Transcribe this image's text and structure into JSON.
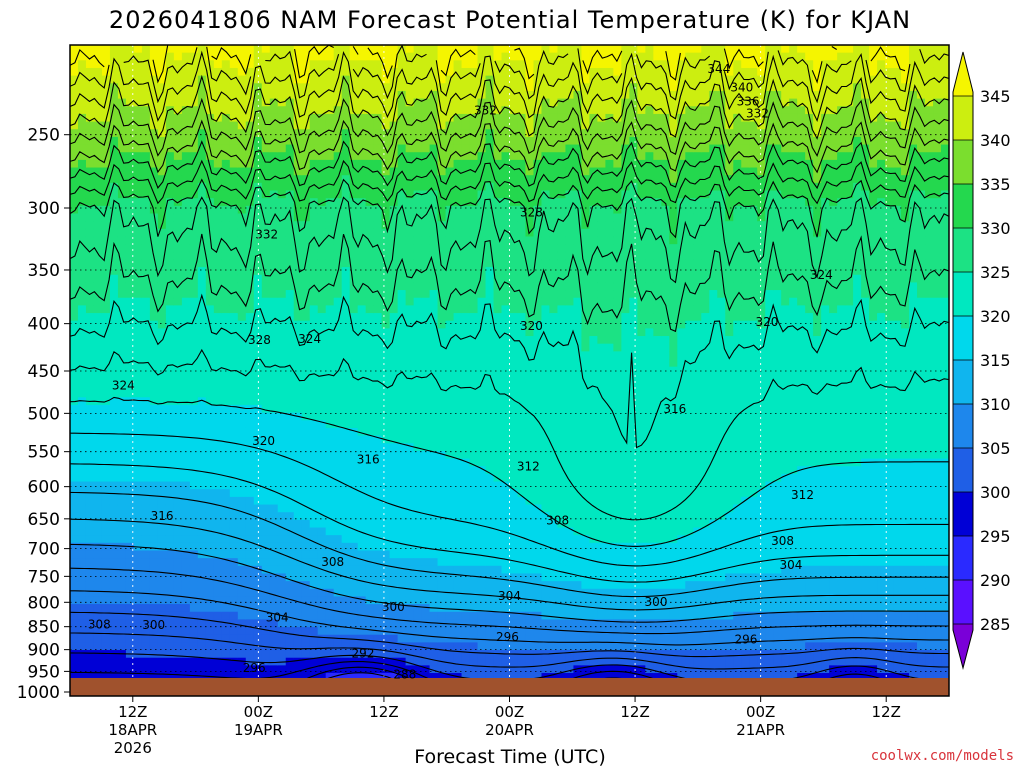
{
  "chart_data": {
    "type": "contour",
    "title": "2026041806 NAM Forecast Potential Temperature (K) for KJAN",
    "xlabel": "Forecast Time (UTC)",
    "credit": "coolwx.com/models",
    "y_axis": {
      "scale": "log-pressure",
      "levels": [
        250,
        300,
        350,
        400,
        450,
        500,
        550,
        600,
        650,
        700,
        750,
        800,
        850,
        900,
        950,
        1000
      ],
      "top": 200,
      "bottom": 1000
    },
    "x_axis": {
      "range_hours": [
        0,
        84
      ],
      "ticks": [
        {
          "hour": 6,
          "lines": [
            "12Z",
            "18APR",
            "2026"
          ]
        },
        {
          "hour": 18,
          "lines": [
            "00Z",
            "19APR"
          ]
        },
        {
          "hour": 30,
          "lines": [
            "12Z"
          ]
        },
        {
          "hour": 42,
          "lines": [
            "00Z",
            "20APR"
          ]
        },
        {
          "hour": 54,
          "lines": [
            "12Z"
          ]
        },
        {
          "hour": 66,
          "lines": [
            "00Z",
            "21APR"
          ]
        },
        {
          "hour": 78,
          "lines": [
            "12Z"
          ]
        }
      ]
    },
    "grid": true,
    "ground_color": "#a0522d",
    "colorbar": {
      "labels": [
        345,
        340,
        335,
        330,
        325,
        320,
        315,
        310,
        305,
        300,
        295,
        290,
        285
      ],
      "colors": {
        "285": "#7a00d8",
        "290": "#5a10ff",
        "295": "#2a2aff",
        "300": "#0000d6",
        "305": "#1f5fe6",
        "310": "#1e87ec",
        "315": "#10b5ee",
        "320": "#00d8ec",
        "325": "#00e8c0",
        "330": "#1ce284",
        "335": "#24d84e",
        "340": "#7bde2e",
        "345": "#ccee10",
        "350": "#f5f500"
      }
    },
    "contour_labels": [
      {
        "value": "344",
        "hour": 62.0,
        "p": 212
      },
      {
        "value": "340",
        "hour": 64.2,
        "p": 222
      },
      {
        "value": "336",
        "hour": 64.8,
        "p": 230
      },
      {
        "value": "332",
        "hour": 65.7,
        "p": 237
      },
      {
        "value": "332",
        "hour": 39.7,
        "p": 235
      },
      {
        "value": "332",
        "hour": 18.8,
        "p": 320
      },
      {
        "value": "328",
        "hour": 44.1,
        "p": 303
      },
      {
        "value": "328",
        "hour": 18.1,
        "p": 416
      },
      {
        "value": "324",
        "hour": 22.9,
        "p": 415
      },
      {
        "value": "324",
        "hour": 5.1,
        "p": 466
      },
      {
        "value": "324",
        "hour": 71.8,
        "p": 354
      },
      {
        "value": "320",
        "hour": 44.1,
        "p": 402
      },
      {
        "value": "320",
        "hour": 66.6,
        "p": 398
      },
      {
        "value": "320",
        "hour": 18.5,
        "p": 535
      },
      {
        "value": "316",
        "hour": 57.8,
        "p": 494
      },
      {
        "value": "316",
        "hour": 28.5,
        "p": 560
      },
      {
        "value": "316",
        "hour": 8.8,
        "p": 645
      },
      {
        "value": "312",
        "hour": 43.8,
        "p": 570
      },
      {
        "value": "312",
        "hour": 70.0,
        "p": 612
      },
      {
        "value": "308",
        "hour": 46.6,
        "p": 652
      },
      {
        "value": "308",
        "hour": 68.1,
        "p": 686
      },
      {
        "value": "308",
        "hour": 25.1,
        "p": 723
      },
      {
        "value": "308",
        "hour": 2.8,
        "p": 844
      },
      {
        "value": "304",
        "hour": 68.9,
        "p": 728
      },
      {
        "value": "304",
        "hour": 42.0,
        "p": 787
      },
      {
        "value": "304",
        "hour": 19.8,
        "p": 830
      },
      {
        "value": "300",
        "hour": 56.0,
        "p": 798
      },
      {
        "value": "300",
        "hour": 30.9,
        "p": 808
      },
      {
        "value": "300",
        "hour": 8.0,
        "p": 845
      },
      {
        "value": "296",
        "hour": 41.8,
        "p": 871
      },
      {
        "value": "296",
        "hour": 64.6,
        "p": 877
      },
      {
        "value": "296",
        "hour": 17.6,
        "p": 941
      },
      {
        "value": "292",
        "hour": 28.0,
        "p": 908
      },
      {
        "value": "288",
        "hour": 32.0,
        "p": 956
      }
    ]
  }
}
